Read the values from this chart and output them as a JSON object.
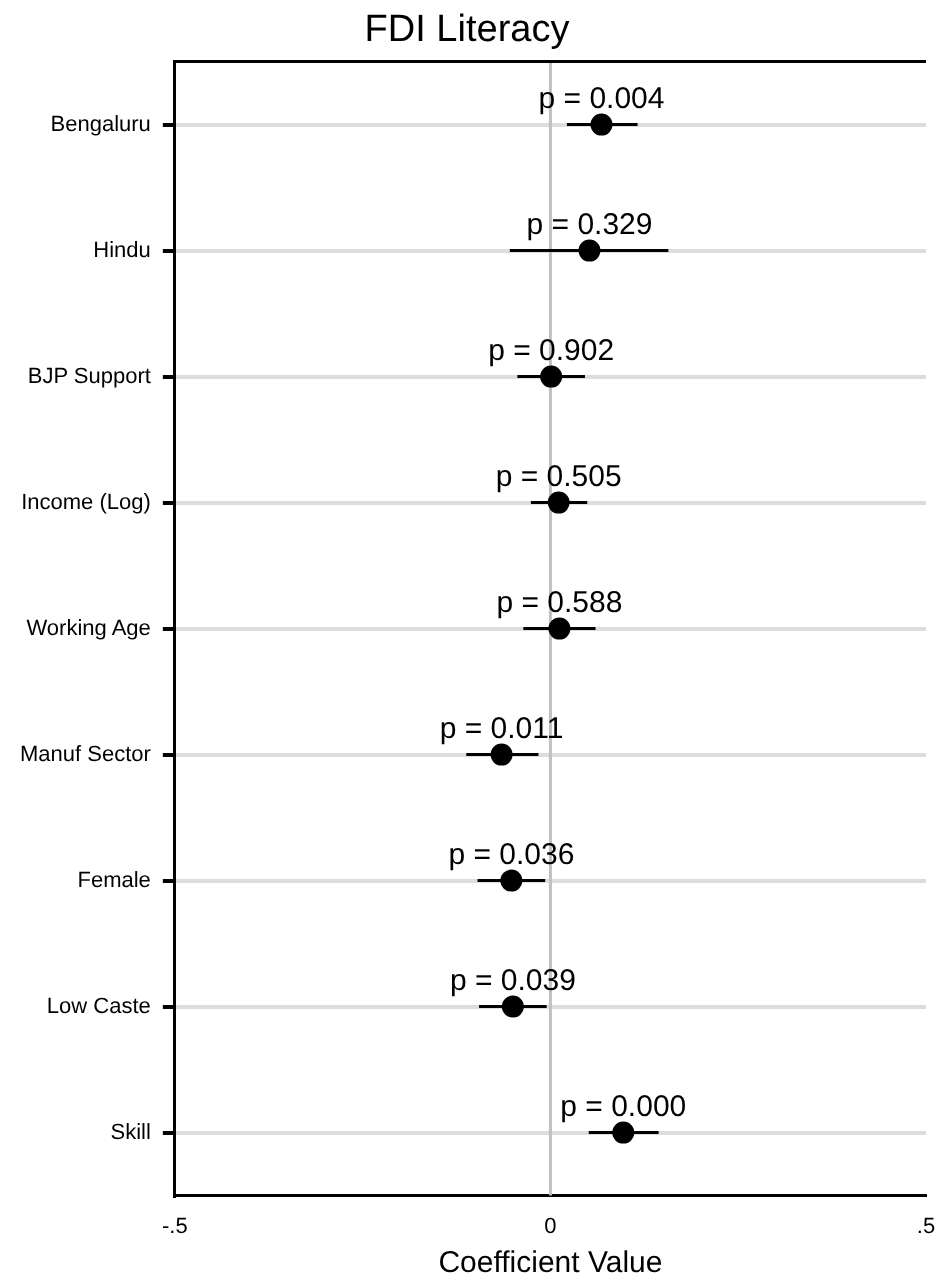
{
  "chart_data": {
    "type": "scatter",
    "title": "FDI Literacy",
    "xlabel": "Coefficient Value",
    "orientation": "horizontal",
    "categories": [
      "Bengaluru",
      "Hindu",
      "BJP Support",
      "Income (Log)",
      "Working Age",
      "Manuf Sector",
      "Female",
      "Low Caste",
      "Skill"
    ],
    "series": [
      {
        "color": "#000000",
        "values": [
          0.068,
          0.052,
          0.001,
          0.011,
          0.012,
          -0.065,
          -0.052,
          -0.05,
          0.097
        ],
        "errors": [
          [
            0.022,
            0.116
          ],
          [
            -0.054,
            0.157
          ],
          [
            -0.044,
            0.046
          ],
          [
            -0.026,
            0.049
          ],
          [
            -0.036,
            0.06
          ],
          [
            -0.112,
            -0.016
          ],
          [
            -0.097,
            -0.007
          ],
          [
            -0.095,
            -0.005
          ],
          [
            0.051,
            0.144
          ]
        ]
      }
    ],
    "xlim": [
      -0.5,
      0.5
    ],
    "xticks": [
      {
        "value": -0.5,
        "label": "-.5"
      },
      {
        "value": 0,
        "label": "0"
      },
      {
        "value": 0.5,
        "label": ".5"
      }
    ],
    "ref_lines": [
      {
        "axis": "x",
        "value": 0,
        "color": "#c0c0c0"
      }
    ],
    "annotations": [
      {
        "text": "p = 0.004",
        "x": 0.068,
        "y": "Bengaluru"
      },
      {
        "text": "p = 0.329",
        "x": 0.052,
        "y": "Hindu"
      },
      {
        "text": "p = 0.902",
        "x": 0.001,
        "y": "BJP Support"
      },
      {
        "text": "p = 0.505",
        "x": 0.011,
        "y": "Income (Log)"
      },
      {
        "text": "p = 0.588",
        "x": 0.012,
        "y": "Working Age"
      },
      {
        "text": "p = 0.011",
        "x": -0.065,
        "y": "Manuf Sector"
      },
      {
        "text": "p = 0.036",
        "x": -0.052,
        "y": "Female"
      },
      {
        "text": "p = 0.039",
        "x": -0.05,
        "y": "Low Caste"
      },
      {
        "text": "p = 0.000",
        "x": 0.097,
        "y": "Skill"
      }
    ],
    "grid": "y",
    "legend": false,
    "marker": "circle"
  }
}
